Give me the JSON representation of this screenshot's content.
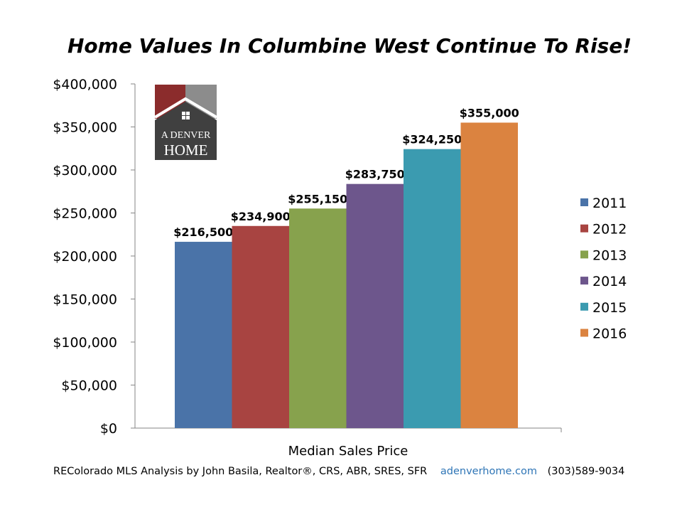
{
  "chart_data": {
    "type": "bar",
    "title": "Home Values In Columbine West Continue To Rise!",
    "xlabel": "Median Sales Price",
    "ylabel": "",
    "ylim": [
      0,
      400000
    ],
    "y_ticks": [
      0,
      50000,
      100000,
      150000,
      200000,
      250000,
      300000,
      350000,
      400000
    ],
    "y_tick_labels": [
      "$0",
      "$50,000",
      "$100,000",
      "$150,000",
      "$200,000",
      "$250,000",
      "$300,000",
      "$350,000",
      "$400,000"
    ],
    "categories": [
      "Median Sales Price"
    ],
    "grid": false,
    "legend_position": "right",
    "series": [
      {
        "name": "2011",
        "values": [
          216500
        ],
        "label": "$216,500",
        "color": "#4a73a8"
      },
      {
        "name": "2012",
        "values": [
          234900
        ],
        "label": "$234,900",
        "color": "#a84441"
      },
      {
        "name": "2013",
        "values": [
          255150
        ],
        "label": "$255,150",
        "color": "#87a24d"
      },
      {
        "name": "2014",
        "values": [
          283750
        ],
        "label": "$283,750",
        "color": "#6d568c"
      },
      {
        "name": "2015",
        "values": [
          324250
        ],
        "label": "$324,250",
        "color": "#3b9bb0"
      },
      {
        "name": "2016",
        "values": [
          355000
        ],
        "label": "$355,000",
        "color": "#db8340"
      }
    ]
  },
  "logo": {
    "line1": "A DENVER",
    "line2": "HOME"
  },
  "footer": {
    "credit": "REColorado MLS  Analysis by John Basila, Realtor®, CRS, ABR, SRES, SFR",
    "url": "adenverhome.com",
    "phone": "(303)589-9034"
  }
}
